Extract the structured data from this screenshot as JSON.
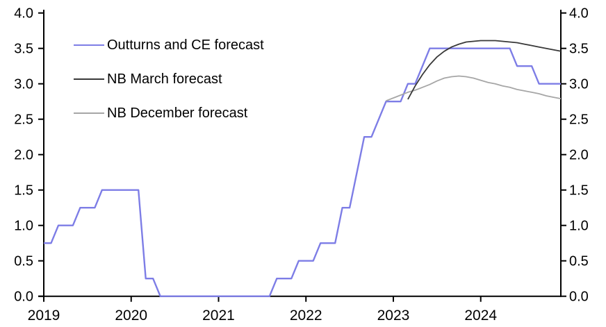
{
  "chart_data": {
    "type": "line",
    "title": "",
    "x_start": "2019-01",
    "x_end": "2024-12",
    "months_total": 72,
    "x_tick_labels": [
      "2019",
      "2020",
      "2021",
      "2022",
      "2023",
      "2024"
    ],
    "y_tick_labels": [
      "0.0",
      "0.5",
      "1.0",
      "1.5",
      "2.0",
      "2.5",
      "3.0",
      "3.5",
      "4.0"
    ],
    "ylim": [
      0,
      4
    ],
    "y_step": 0.5,
    "y_axis_sides": "both",
    "grid": false,
    "legend_position": "top-left-inside",
    "series": [
      {
        "name": "Outturns and CE forecast",
        "color": "#7d7de6",
        "width": 2.4,
        "kind": "monthly",
        "start_index": 0,
        "values": [
          0.75,
          0.75,
          1.0,
          1.0,
          1.0,
          1.25,
          1.25,
          1.25,
          1.5,
          1.5,
          1.5,
          1.5,
          1.5,
          1.5,
          0.25,
          0.25,
          0.0,
          0.0,
          0.0,
          0.0,
          0.0,
          0.0,
          0.0,
          0.0,
          0.0,
          0.0,
          0.0,
          0.0,
          0.0,
          0.0,
          0.0,
          0.0,
          0.25,
          0.25,
          0.25,
          0.5,
          0.5,
          0.5,
          0.75,
          0.75,
          0.75,
          1.25,
          1.25,
          1.75,
          2.25,
          2.25,
          2.5,
          2.75,
          2.75,
          2.75,
          3.0,
          3.0,
          3.25,
          3.5,
          3.5,
          3.5,
          3.5,
          3.5,
          3.5,
          3.5,
          3.5,
          3.5,
          3.5,
          3.5,
          3.5,
          3.25,
          3.25,
          3.25,
          3.0,
          3.0,
          3.0,
          3.0
        ]
      },
      {
        "name": "NB December forecast",
        "color": "#a6a6a6",
        "width": 1.8,
        "kind": "points",
        "points": [
          [
            47,
            2.76
          ],
          [
            48,
            2.8
          ],
          [
            49,
            2.84
          ],
          [
            50,
            2.88
          ],
          [
            51,
            2.91
          ],
          [
            52,
            2.95
          ],
          [
            53,
            2.99
          ],
          [
            54,
            3.04
          ],
          [
            55,
            3.08
          ],
          [
            56,
            3.1
          ],
          [
            57,
            3.11
          ],
          [
            58,
            3.1
          ],
          [
            59,
            3.08
          ],
          [
            60,
            3.05
          ],
          [
            61,
            3.02
          ],
          [
            62,
            3.0
          ],
          [
            63,
            2.97
          ],
          [
            64,
            2.95
          ],
          [
            65,
            2.92
          ],
          [
            66,
            2.9
          ],
          [
            67,
            2.88
          ],
          [
            68,
            2.86
          ],
          [
            69,
            2.83
          ],
          [
            70,
            2.81
          ],
          [
            71,
            2.79
          ]
        ]
      },
      {
        "name": "NB March forecast",
        "color": "#383838",
        "width": 1.8,
        "kind": "points",
        "points": [
          [
            50,
            2.78
          ],
          [
            51,
            2.97
          ],
          [
            52,
            3.13
          ],
          [
            53,
            3.27
          ],
          [
            54,
            3.38
          ],
          [
            55,
            3.46
          ],
          [
            56,
            3.52
          ],
          [
            57,
            3.56
          ],
          [
            58,
            3.59
          ],
          [
            59,
            3.6
          ],
          [
            60,
            3.61
          ],
          [
            61,
            3.61
          ],
          [
            62,
            3.61
          ],
          [
            63,
            3.6
          ],
          [
            64,
            3.59
          ],
          [
            65,
            3.58
          ],
          [
            66,
            3.56
          ],
          [
            67,
            3.54
          ],
          [
            68,
            3.52
          ],
          [
            69,
            3.5
          ],
          [
            70,
            3.48
          ],
          [
            71,
            3.46
          ]
        ]
      }
    ],
    "legend_order": [
      "Outturns and CE forecast",
      "NB March forecast",
      "NB December forecast"
    ]
  },
  "legend": {
    "item1": "Outturns and CE forecast",
    "item2": "NB March forecast",
    "item3": "NB December forecast"
  },
  "colors": {
    "outturns_ce": "#7d7de6",
    "nb_march": "#383838",
    "nb_december": "#a6a6a6",
    "axis": "#000000",
    "background": "#ffffff"
  }
}
